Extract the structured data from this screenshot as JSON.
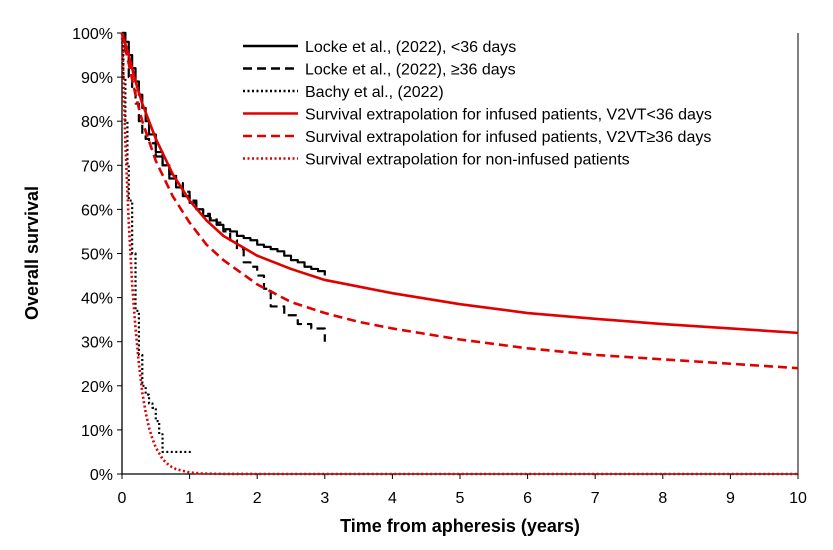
{
  "chart_data": {
    "type": "line",
    "title": "",
    "xlabel": "Time from apheresis (years)",
    "ylabel": "Overall survival",
    "xlim": [
      0,
      10
    ],
    "ylim": [
      0,
      100
    ],
    "x_ticks": [
      "0",
      "1",
      "2",
      "3",
      "4",
      "5",
      "6",
      "7",
      "8",
      "9",
      "10"
    ],
    "y_ticks": [
      "0%",
      "10%",
      "20%",
      "30%",
      "40%",
      "50%",
      "60%",
      "70%",
      "80%",
      "90%",
      "100%"
    ],
    "grid": false,
    "legend_position": "top-right",
    "series": [
      {
        "name": "Locke et al., (2022), <36 days",
        "color": "#000000",
        "style": "solid",
        "step": true,
        "x": [
          0,
          0.05,
          0.1,
          0.15,
          0.2,
          0.25,
          0.3,
          0.35,
          0.4,
          0.5,
          0.6,
          0.7,
          0.8,
          0.9,
          1.0,
          1.1,
          1.2,
          1.3,
          1.4,
          1.5,
          1.6,
          1.7,
          1.8,
          1.9,
          2.0,
          2.1,
          2.2,
          2.3,
          2.4,
          2.5,
          2.6,
          2.7,
          2.8,
          2.9,
          3.0
        ],
        "y": [
          100,
          98,
          95,
          92,
          89,
          86,
          83,
          80,
          77,
          73,
          70,
          67,
          65,
          63,
          61.5,
          60,
          58.5,
          57.5,
          56.5,
          55.5,
          55,
          54,
          53.5,
          53,
          52,
          51.5,
          51,
          50.5,
          49.5,
          48.5,
          48,
          47,
          46.5,
          46,
          45
        ]
      },
      {
        "name": "Locke et al., (2022), ≥36 days",
        "color": "#000000",
        "style": "dashed",
        "step": true,
        "x": [
          0,
          0.05,
          0.1,
          0.15,
          0.2,
          0.25,
          0.3,
          0.35,
          0.4,
          0.5,
          0.6,
          0.7,
          0.8,
          0.9,
          1.0,
          1.1,
          1.2,
          1.3,
          1.4,
          1.5,
          1.6,
          1.7,
          1.8,
          1.9,
          2.0,
          2.1,
          2.2,
          2.4,
          2.6,
          2.8,
          3.0
        ],
        "y": [
          100,
          95,
          90,
          87,
          84,
          80,
          77,
          76,
          75,
          72,
          70,
          68,
          66,
          64,
          62,
          60,
          59,
          58,
          57,
          55,
          53,
          51,
          48,
          47,
          45,
          42,
          38,
          36,
          34,
          33,
          30
        ]
      },
      {
        "name": "Bachy et al., (2022)",
        "color": "#000000",
        "style": "dotted",
        "step": true,
        "x": [
          0,
          0.02,
          0.05,
          0.08,
          0.1,
          0.15,
          0.2,
          0.25,
          0.3,
          0.35,
          0.4,
          0.45,
          0.5,
          0.55,
          0.6,
          0.7,
          0.8,
          0.9,
          1.05
        ],
        "y": [
          97,
          90,
          80,
          70,
          62,
          50,
          37,
          27,
          20,
          18,
          16,
          15,
          12,
          9,
          5,
          5,
          5,
          5,
          5
        ]
      },
      {
        "name": "Survival extrapolation for infused patients, V2VT<36 days",
        "color": "#e00000",
        "style": "solid",
        "step": false,
        "x": [
          0,
          0.1,
          0.2,
          0.3,
          0.5,
          0.75,
          1,
          1.25,
          1.5,
          2,
          2.5,
          3,
          3.5,
          4,
          5,
          6,
          7,
          8,
          9,
          10
        ],
        "y": [
          100,
          95,
          89,
          84,
          76,
          68,
          62,
          57.5,
          54,
          49.5,
          46.5,
          44,
          42.5,
          41,
          38.5,
          36.5,
          35.2,
          34,
          33,
          32
        ]
      },
      {
        "name": "Survival extrapolation for infused patients, V2VT≥36 days",
        "color": "#e00000",
        "style": "dashed",
        "step": false,
        "x": [
          0,
          0.1,
          0.2,
          0.3,
          0.5,
          0.75,
          1,
          1.25,
          1.5,
          2,
          2.5,
          3,
          3.5,
          4,
          5,
          6,
          7,
          8,
          9,
          10
        ],
        "y": [
          100,
          93,
          86,
          80,
          71,
          63,
          57,
          52,
          48.5,
          43,
          39,
          36.5,
          34.5,
          33,
          30.5,
          28.5,
          27,
          26,
          25,
          24
        ]
      },
      {
        "name": "Survival extrapolation for non-infused patients",
        "color": "#e00000",
        "style": "dotted",
        "step": false,
        "x": [
          0,
          0.05,
          0.1,
          0.15,
          0.2,
          0.25,
          0.3,
          0.35,
          0.4,
          0.45,
          0.5,
          0.6,
          0.7,
          0.8,
          1.0,
          1.2,
          1.5,
          2,
          3,
          4,
          6,
          10
        ],
        "y": [
          100,
          75,
          57,
          43,
          33,
          25,
          18.5,
          14,
          10.5,
          8,
          6,
          3.4,
          1.9,
          1.1,
          0.35,
          0.1,
          0.02,
          0,
          0,
          0,
          0,
          0
        ]
      }
    ]
  }
}
